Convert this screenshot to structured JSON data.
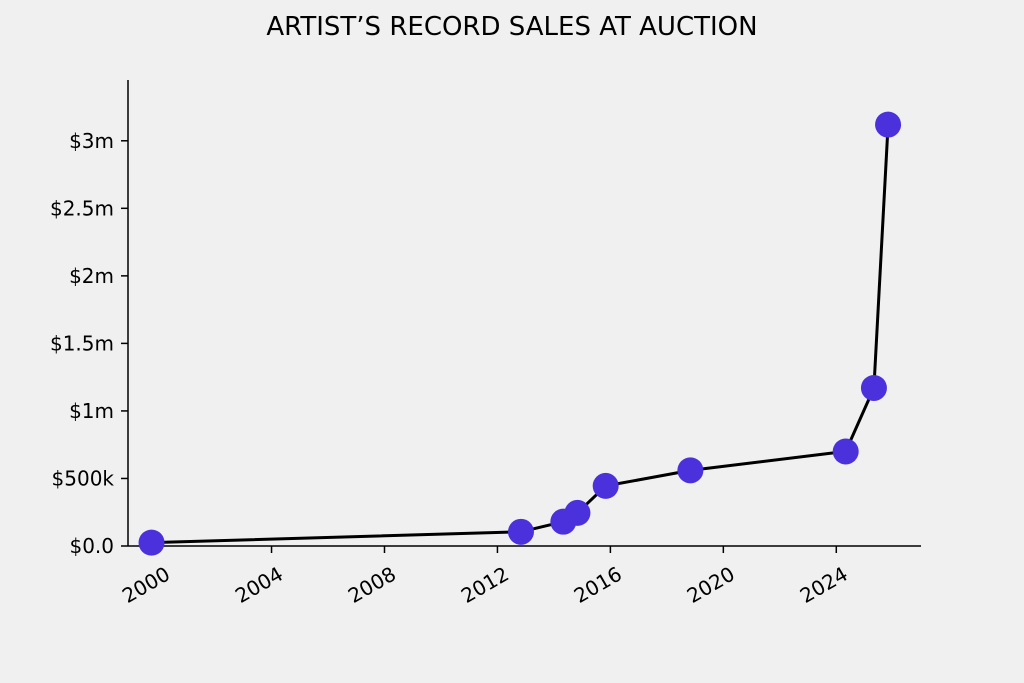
{
  "chart_data": {
    "type": "line",
    "title": "ARTIST’S RECORD SALES AT AUCTION",
    "xlabel": "",
    "ylabel": "",
    "x_axis": {
      "type": "date",
      "ticks": [
        "2000",
        "2004",
        "2008",
        "2012",
        "2016",
        "2020",
        "2024"
      ],
      "range": [
        "1998-12",
        "2027-01"
      ]
    },
    "y_axis": {
      "ticks": [
        {
          "value": 0,
          "label": "$0.0"
        },
        {
          "value": 500000,
          "label": "$500k"
        },
        {
          "value": 1000000,
          "label": "$1m"
        },
        {
          "value": 1500000,
          "label": "$1.5m"
        },
        {
          "value": 2000000,
          "label": "$2m"
        },
        {
          "value": 2500000,
          "label": "$2.5m"
        },
        {
          "value": 3000000,
          "label": "$3m"
        }
      ],
      "range": [
        0,
        3450000
      ]
    },
    "series": [
      {
        "points": [
          {
            "x": "1999-10",
            "y": 25000
          },
          {
            "x": "2012-11",
            "y": 105000
          },
          {
            "x": "2014-05",
            "y": 180000
          },
          {
            "x": "2014-11",
            "y": 245000
          },
          {
            "x": "2015-11",
            "y": 445000
          },
          {
            "x": "2018-11",
            "y": 560000
          },
          {
            "x": "2024-05",
            "y": 700000
          },
          {
            "x": "2025-05",
            "y": 1170000
          },
          {
            "x": "2025-11",
            "y": 3120000
          }
        ]
      }
    ],
    "grid": false,
    "colors": {
      "line": "#000000",
      "marker": "#4b31dc",
      "background": "#f0f0f0"
    }
  }
}
